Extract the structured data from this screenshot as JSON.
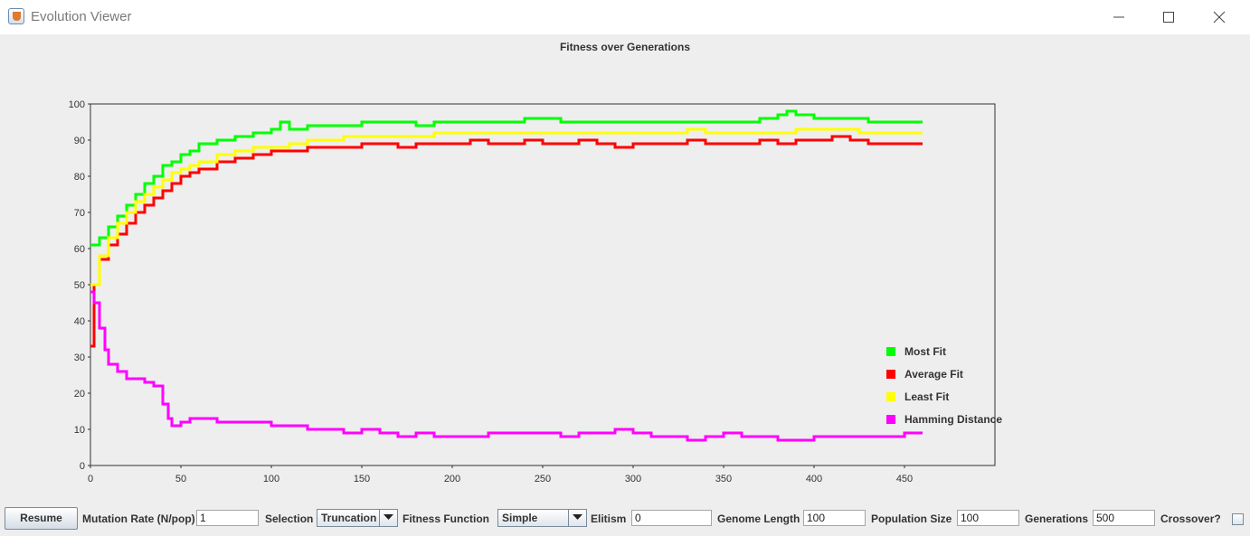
{
  "window": {
    "title": "Evolution Viewer"
  },
  "chart_data": {
    "type": "line",
    "title": "Fitness over Generations",
    "xlim": [
      0,
      500
    ],
    "ylim": [
      0,
      100
    ],
    "xticks": [
      0,
      50,
      100,
      150,
      200,
      250,
      300,
      350,
      400,
      450
    ],
    "yticks": [
      0,
      10,
      20,
      30,
      40,
      50,
      60,
      70,
      80,
      90,
      100
    ],
    "grid": false,
    "legend_position": "right",
    "series": [
      {
        "name": "Most Fit",
        "color": "#00ff00",
        "x": [
          0,
          5,
          10,
          15,
          20,
          25,
          30,
          35,
          40,
          45,
          50,
          55,
          60,
          70,
          80,
          90,
          100,
          105,
          110,
          120,
          130,
          140,
          150,
          160,
          170,
          180,
          190,
          200,
          210,
          220,
          230,
          240,
          250,
          260,
          270,
          280,
          290,
          300,
          310,
          320,
          330,
          340,
          350,
          360,
          370,
          380,
          385,
          390,
          400,
          410,
          420,
          430,
          440,
          450,
          460
        ],
        "values": [
          61,
          63,
          66,
          69,
          72,
          75,
          78,
          80,
          83,
          84,
          86,
          87,
          89,
          90,
          91,
          92,
          93,
          95,
          93,
          94,
          94,
          94,
          95,
          95,
          95,
          94,
          95,
          95,
          95,
          95,
          95,
          96,
          96,
          95,
          95,
          95,
          95,
          95,
          95,
          95,
          95,
          95,
          95,
          95,
          96,
          97,
          98,
          97,
          96,
          96,
          96,
          95,
          95,
          95,
          95
        ]
      },
      {
        "name": "Average Fit",
        "color": "#ff0000",
        "x": [
          0,
          2,
          5,
          10,
          15,
          20,
          25,
          30,
          35,
          40,
          45,
          50,
          55,
          60,
          70,
          80,
          90,
          100,
          110,
          120,
          130,
          140,
          150,
          160,
          170,
          180,
          190,
          200,
          210,
          220,
          230,
          240,
          250,
          260,
          270,
          280,
          290,
          300,
          310,
          320,
          330,
          340,
          350,
          360,
          370,
          380,
          390,
          400,
          410,
          420,
          430,
          440,
          450,
          460
        ],
        "values": [
          33,
          50,
          57,
          61,
          64,
          67,
          70,
          72,
          74,
          76,
          78,
          80,
          81,
          82,
          84,
          85,
          86,
          87,
          87,
          88,
          88,
          88,
          89,
          89,
          88,
          89,
          89,
          89,
          90,
          89,
          89,
          90,
          89,
          89,
          90,
          89,
          88,
          89,
          89,
          89,
          90,
          89,
          89,
          89,
          90,
          89,
          90,
          90,
          91,
          90,
          89,
          89,
          89,
          89
        ]
      },
      {
        "name": "Least Fit",
        "color": "#ffff00",
        "x": [
          0,
          5,
          10,
          15,
          20,
          25,
          30,
          35,
          40,
          45,
          50,
          55,
          60,
          70,
          80,
          90,
          100,
          110,
          120,
          130,
          140,
          150,
          160,
          170,
          180,
          190,
          200,
          220,
          240,
          260,
          280,
          290,
          300,
          310,
          320,
          330,
          340,
          360,
          380,
          390,
          400,
          420,
          425,
          440,
          460
        ],
        "values": [
          50,
          58,
          63,
          67,
          70,
          73,
          75,
          77,
          79,
          81,
          82,
          83,
          84,
          86,
          87,
          88,
          88,
          89,
          90,
          90,
          91,
          91,
          91,
          91,
          91,
          92,
          92,
          92,
          92,
          92,
          92,
          92,
          92,
          92,
          92,
          93,
          92,
          92,
          92,
          93,
          93,
          93,
          92,
          92,
          92
        ]
      },
      {
        "name": "Hamming Distance",
        "color": "#ff00ff",
        "x": [
          0,
          2,
          5,
          8,
          10,
          15,
          20,
          25,
          30,
          35,
          40,
          43,
          45,
          50,
          55,
          60,
          70,
          80,
          90,
          100,
          110,
          120,
          130,
          140,
          150,
          160,
          170,
          180,
          190,
          200,
          210,
          220,
          230,
          240,
          250,
          260,
          270,
          280,
          290,
          300,
          310,
          320,
          330,
          340,
          350,
          360,
          370,
          380,
          390,
          400,
          410,
          420,
          430,
          440,
          450,
          460
        ],
        "values": [
          48,
          45,
          38,
          32,
          28,
          26,
          24,
          24,
          23,
          22,
          17,
          13,
          11,
          12,
          13,
          13,
          12,
          12,
          12,
          11,
          11,
          10,
          10,
          9,
          10,
          9,
          8,
          9,
          8,
          8,
          8,
          9,
          9,
          9,
          9,
          8,
          9,
          9,
          10,
          9,
          8,
          8,
          7,
          8,
          9,
          8,
          8,
          7,
          7,
          8,
          8,
          8,
          8,
          8,
          9,
          9
        ]
      }
    ]
  },
  "controls": {
    "resume_label": "Resume",
    "mutation_label": "Mutation Rate (N/pop)",
    "mutation_value": "1",
    "selection_label": "Selection",
    "selection_value": "Truncation",
    "fitness_label": "Fitness Function",
    "fitness_value": "Simple",
    "elitism_label": "Elitism",
    "elitism_value": "0",
    "genome_label": "Genome Length",
    "genome_value": "100",
    "population_label": "Population Size",
    "population_value": "100",
    "generations_label": "Generations",
    "generations_value": "500",
    "crossover_label": "Crossover?",
    "crossover_checked": false
  }
}
